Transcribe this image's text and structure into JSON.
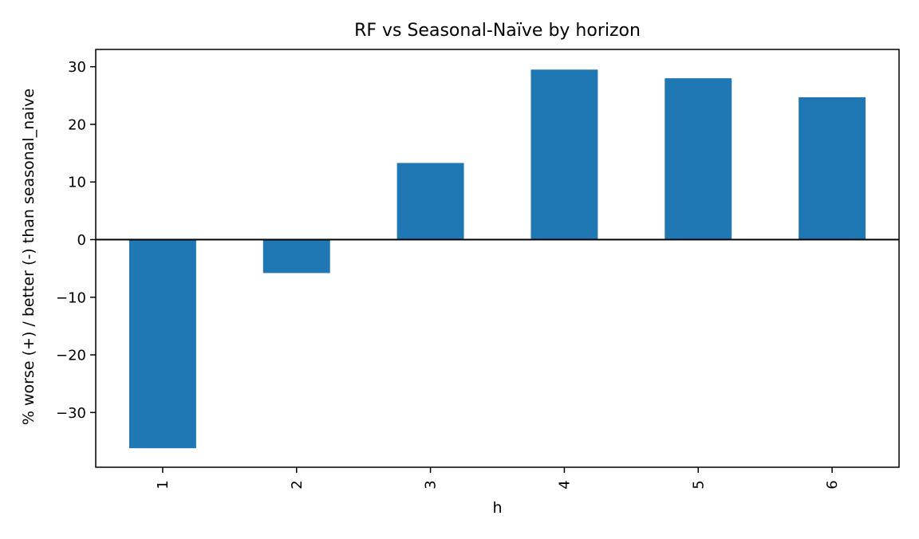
{
  "chart_data": {
    "type": "bar",
    "title": "RF vs Seasonal-Naïve by horizon",
    "xlabel": "h",
    "ylabel": "% worse (+) / better (-) than seasonal_naive",
    "categories": [
      "1",
      "2",
      "3",
      "4",
      "5",
      "6"
    ],
    "values": [
      -36.2,
      -5.8,
      13.3,
      29.5,
      28.0,
      24.7
    ],
    "ylim": [
      -39.5,
      33.0
    ],
    "yticks": [
      30,
      20,
      10,
      0,
      -10,
      -20,
      -30
    ],
    "ytick_labels": [
      "30",
      "20",
      "10",
      "0",
      "−10",
      "−20",
      "−30"
    ],
    "bar_color": "#1f77b4",
    "zero_line_color": "#000000",
    "grid": false,
    "legend": "none"
  }
}
